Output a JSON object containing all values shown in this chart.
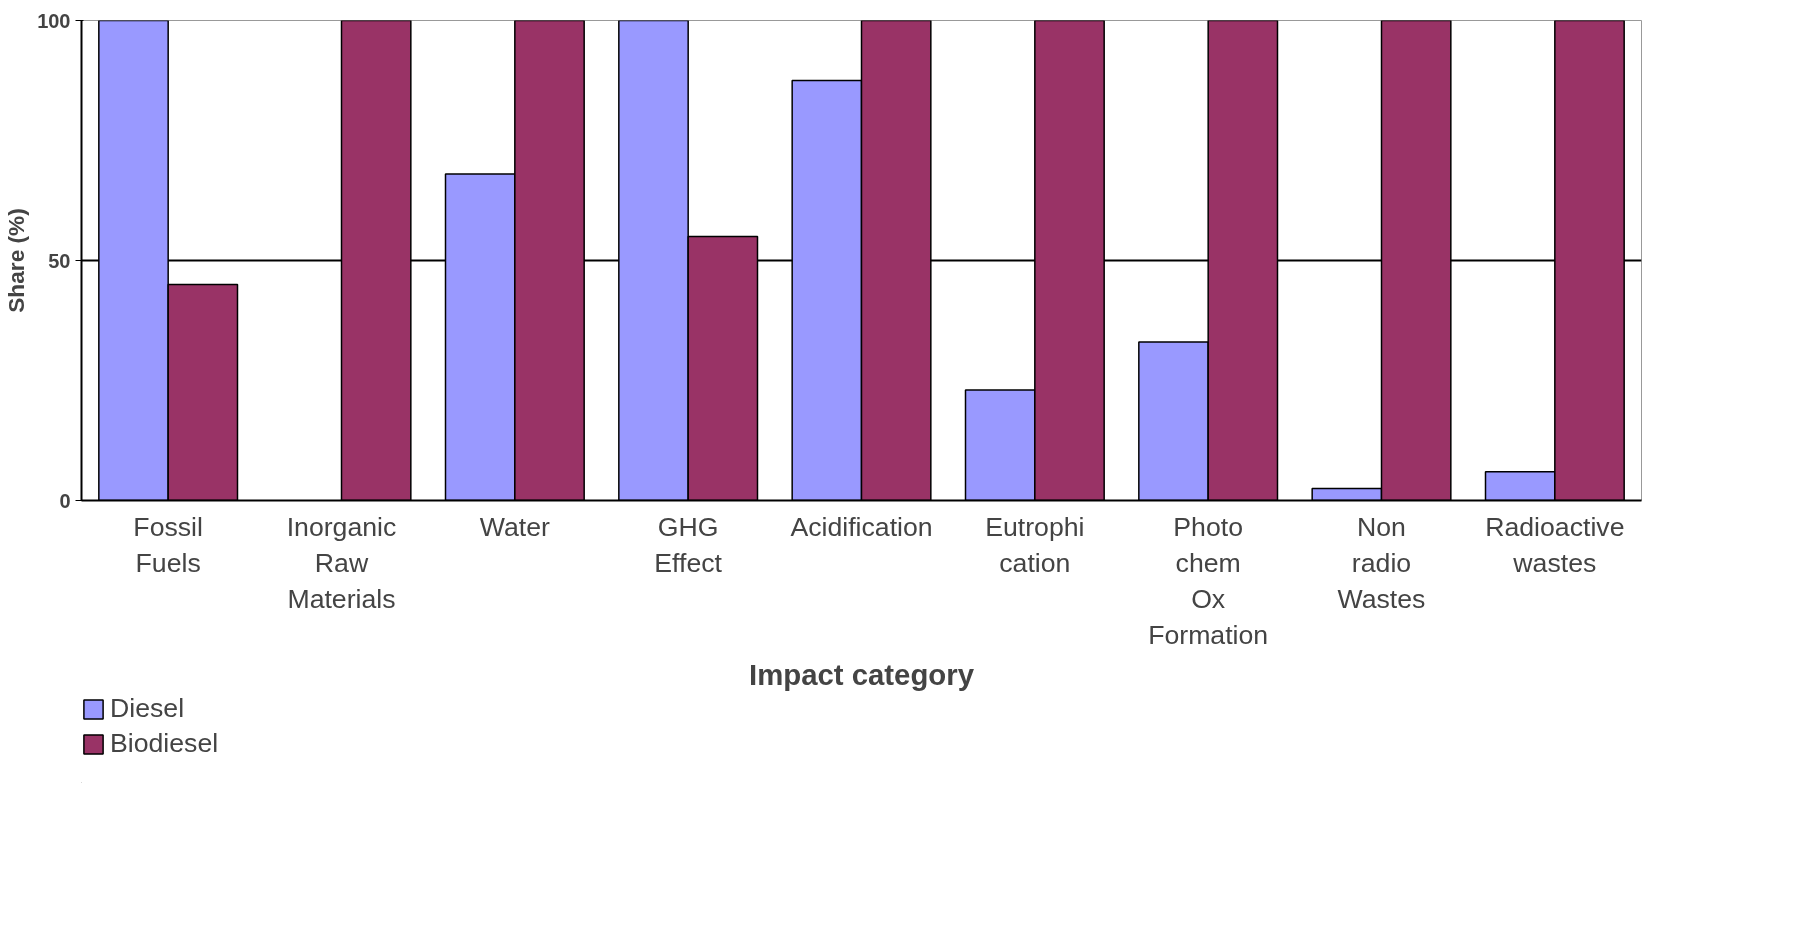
{
  "chart_data": {
    "type": "bar",
    "xlabel": "Impact category",
    "ylabel": "Share (%)",
    "categories": [
      "Fossil Fuels",
      "Inorganic Raw Materials",
      "Water",
      "GHG Effect",
      "Acidification",
      "Eutrophi cation",
      "Photo chem Ox Formation",
      "Non radio Wastes",
      "Radioactive wastes"
    ],
    "series": [
      {
        "name": "Diesel",
        "color": "#9999ff",
        "values": [
          100,
          0,
          68,
          100,
          87.5,
          23,
          33,
          2.5,
          6
        ]
      },
      {
        "name": "Biodiesel",
        "color": "#993366",
        "values": [
          45,
          100,
          100,
          55,
          100,
          100,
          100,
          100,
          100
        ]
      }
    ],
    "ylim": [
      0,
      100
    ],
    "yticks": [
      0,
      50,
      100
    ],
    "grid": "y",
    "legend": "bottom left"
  }
}
